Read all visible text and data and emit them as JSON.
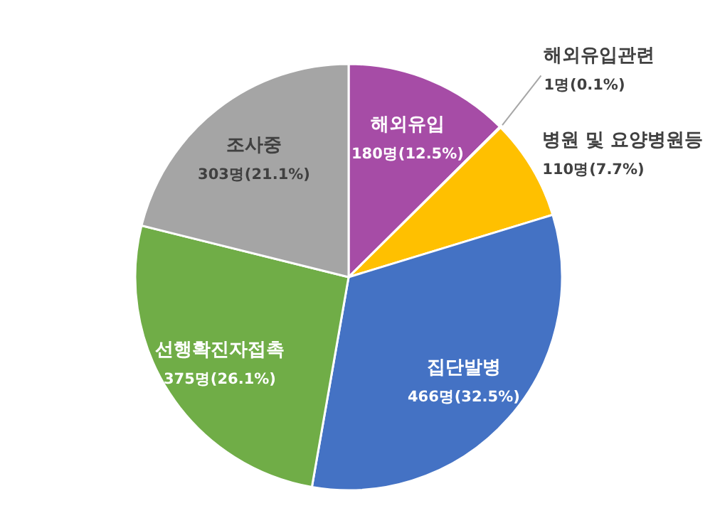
{
  "chart_data": {
    "type": "pie",
    "categories": [
      "해외유입",
      "해외유입관련",
      "병원 및 요양병원등",
      "집단발병",
      "선행확진자접촉",
      "조사중"
    ],
    "values": [
      180,
      1,
      110,
      466,
      375,
      303
    ],
    "value_labels": [
      "180명(12.5%)",
      "1명(0.1%)",
      "110명(7.7%)",
      "466명(32.5%)",
      "375명(26.1%)",
      "303명(21.1%)"
    ],
    "colors": [
      "#a64ca6",
      "#ed7d31",
      "#ffc000",
      "#4472c4",
      "#70ad47",
      "#a5a5a5"
    ]
  }
}
